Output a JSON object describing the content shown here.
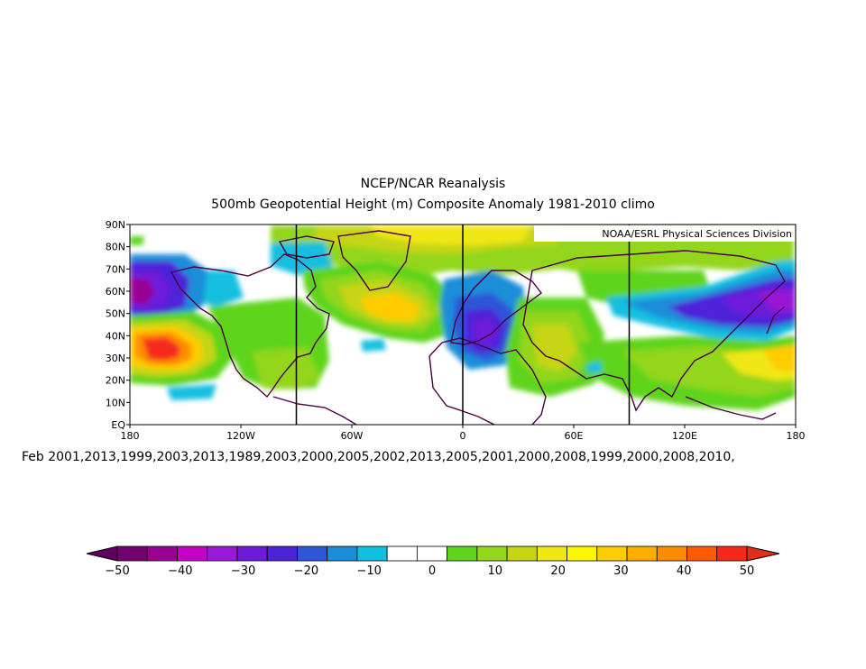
{
  "title": "NCEP/NCAR Reanalysis",
  "subtitle": "500mb Geopotential Height (m) Composite Anomaly 1981-2010 climo",
  "credit": "NOAA/ESRL Physical Sciences Division",
  "caption": "Feb 2001,2013,1999,2003,2013,1989,2003,2000,2005,2002,2013,2005,2001,2000,2008,1999,2000,2008,2010,",
  "map": {
    "projection": "cylindrical equidistant",
    "lon_range": [
      -180,
      180
    ],
    "lat_range": [
      0,
      90
    ],
    "lat_ticks": [
      "EQ",
      "10N",
      "20N",
      "30N",
      "40N",
      "50N",
      "60N",
      "70N",
      "80N",
      "90N"
    ],
    "lon_ticks": [
      "180",
      "120W",
      "60W",
      "0",
      "60E",
      "120E",
      "180"
    ],
    "reference_meridians_deg": [
      -90,
      0,
      90
    ],
    "features": [
      {
        "name": "negative-anomaly-north-pacific",
        "lon": -168,
        "lat": 60,
        "value": -40
      },
      {
        "name": "positive-anomaly-central-pacific",
        "lon": -156,
        "lat": 34,
        "value": 45
      },
      {
        "name": "positive-anomaly-north-atlantic",
        "lon": -35,
        "lat": 52,
        "value": 25
      },
      {
        "name": "negative-anomaly-europe",
        "lon": 12,
        "lat": 42,
        "value": -30
      },
      {
        "name": "positive-anomaly-middle-east",
        "lon": 50,
        "lat": 38,
        "value": 20
      },
      {
        "name": "negative-anomaly-east-asia",
        "lon": 165,
        "lat": 55,
        "value": -40
      },
      {
        "name": "positive-anomaly-west-pacific",
        "lon": 150,
        "lat": 30,
        "value": 25
      }
    ]
  },
  "colorbar": {
    "labels": [
      "-50",
      "-40",
      "-30",
      "-20",
      "-10",
      "0",
      "10",
      "20",
      "30",
      "40",
      "50"
    ],
    "colors": [
      "#72006f",
      "#9a0094",
      "#c400c8",
      "#9a18d7",
      "#6d1bd9",
      "#4d23d8",
      "#2f55d8",
      "#1a8dd9",
      "#12bfe0",
      "#ffffff",
      "#ffffff",
      "#5ed41a",
      "#93d61a",
      "#c5d514",
      "#f0e714",
      "#fff700",
      "#ffcc00",
      "#ffae00",
      "#ff8c00",
      "#ff5a00",
      "#f62a1a"
    ],
    "low_end_color": "#60005e",
    "high_end_color": "#e0301a"
  }
}
